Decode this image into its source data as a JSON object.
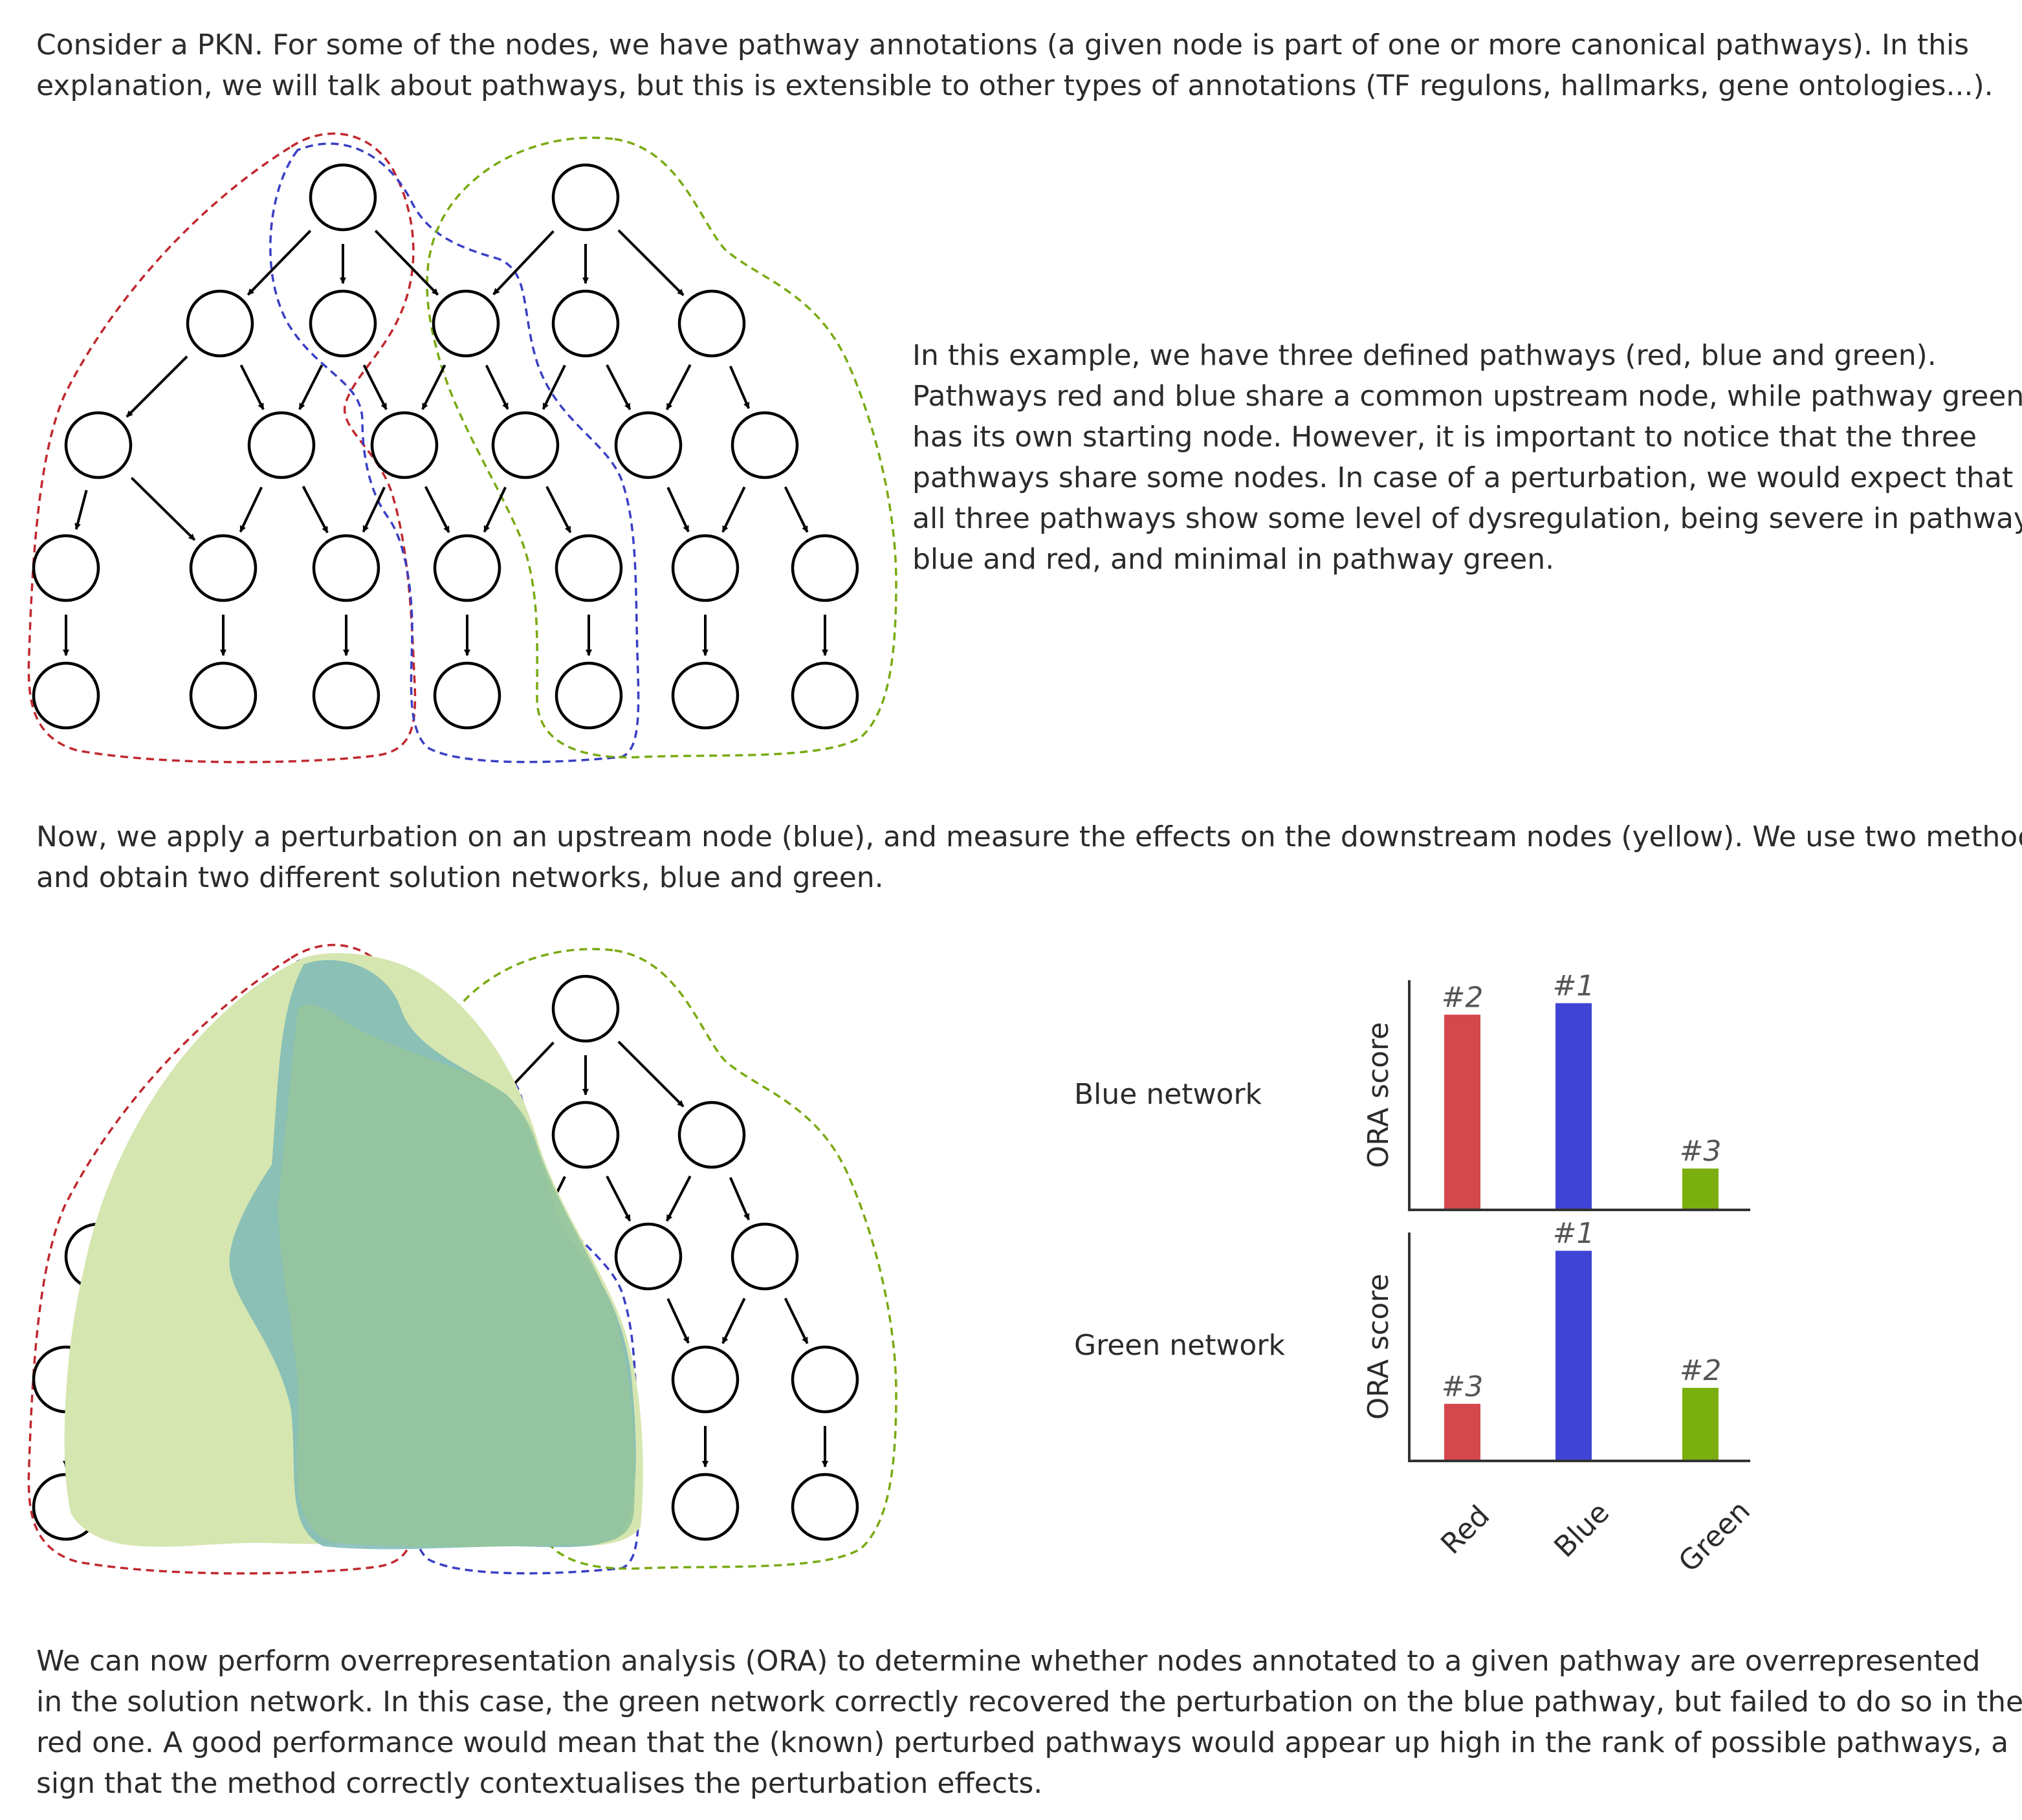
{
  "intro": {
    "lines": [
      "Consider a PKN. For some of the nodes, we have pathway annotations (a given node is part of one or more canonical pathways). In this",
      "explanation, we will talk about pathways, but this is extensible to other types of annotations (TF regulons, hallmarks, gene ontologies...)."
    ]
  },
  "example": {
    "lines": [
      "In this example, we have three defined pathways (red, blue and green).",
      "Pathways red and blue share a common upstream node, while pathway green",
      "has its own starting node. However, it is important to notice that the three",
      "pathways share some nodes. In case of a perturbation, we would expect that",
      "all three pathways show some level of dysregulation, being severe in pathways",
      "blue and red, and minimal in pathway green."
    ]
  },
  "perturbation": {
    "lines": [
      "Now, we apply a perturbation on an upstream node (blue), and measure the effects on the downstream nodes (yellow). We use two methods",
      "and obtain two different solution networks, blue and green."
    ]
  },
  "conclusion": {
    "lines": [
      "We can now perform overrepresentation analysis (ORA) to determine whether nodes annotated to a given pathway are overrepresented",
      "in the solution network. In this case, the green network correctly recovered the perturbation on the blue pathway, but failed to do so in the",
      "red one. A good performance would mean that the (known) perturbed pathways would appear up high in the rank of possible pathways, a",
      "sign that the method correctly contextualises the perturbation effects."
    ]
  },
  "colors": {
    "pathway_red": "#c0282e",
    "pathway_blue": "#3a3fc4",
    "pathway_green": "#79aa12",
    "perturbed_node": "#2b58b8",
    "solution_node": "#b5d9d6",
    "readout_node": "#f0c800",
    "readout_shared": "#a8ab22",
    "blue_network_area": "#7db8b6",
    "green_network_area": "#d6e6b0",
    "overlap_area": "#95c59d",
    "bar_red": "#d4474c",
    "bar_blue": "#3f44d4",
    "bar_green": "#7aaf0f"
  },
  "chart_data": [
    {
      "type": "bar",
      "title": "Blue network",
      "ylabel": "ORA score",
      "categories": [
        "Red",
        "Blue",
        "Green"
      ],
      "values": [
        0.85,
        0.9,
        0.18
      ],
      "ranks": [
        "#2",
        "#1",
        "#3"
      ],
      "ylim": [
        0,
        1
      ]
    },
    {
      "type": "bar",
      "title": "Green network",
      "ylabel": "ORA score",
      "categories": [
        "Red",
        "Blue",
        "Green"
      ],
      "values": [
        0.25,
        0.92,
        0.32
      ],
      "ranks": [
        "#3",
        "#1",
        "#2"
      ],
      "ylim": [
        0,
        1
      ]
    }
  ]
}
